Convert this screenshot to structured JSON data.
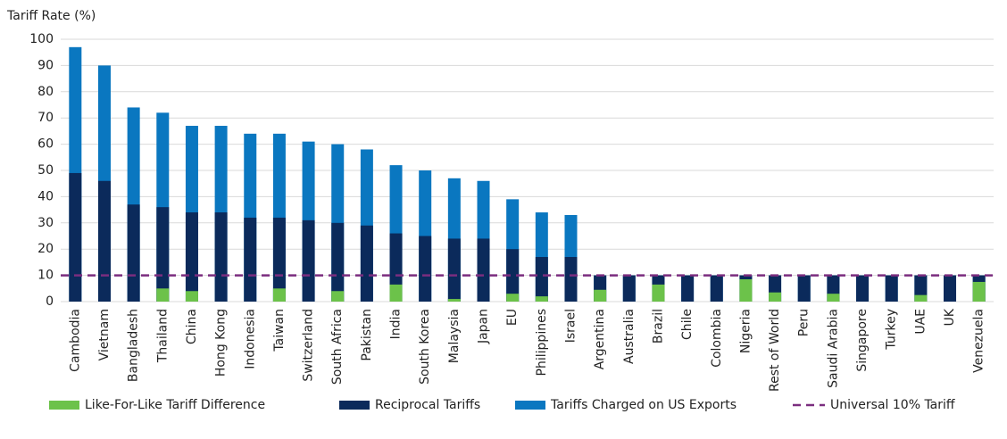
{
  "chart_data": {
    "type": "bar",
    "y_label": "Tariff Rate (%)",
    "categories": [
      "Cambodia",
      "Vietnam",
      "Bangladesh",
      "Thailand",
      "China",
      "Hong Kong",
      "Indonesia",
      "Taiwan",
      "Switzerland",
      "South Africa",
      "Pakistan",
      "India",
      "South Korea",
      "Malaysia",
      "Japan",
      "EU",
      "Philippines",
      "Israel",
      "Argentina",
      "Australia",
      "Brazil",
      "Chile",
      "Colombia",
      "Nigeria",
      "Rest of World",
      "Peru",
      "Saudi Arabia",
      "Singapore",
      "Turkey",
      "UAE",
      "UK",
      "Venezuela"
    ],
    "series": [
      {
        "name": "Like-For-Like Tariff Difference",
        "color": "#6cc24a",
        "values": [
          null,
          null,
          null,
          5,
          4,
          null,
          null,
          5,
          null,
          4,
          null,
          6.5,
          null,
          1,
          null,
          3,
          2,
          null,
          4.5,
          null,
          6.5,
          null,
          null,
          8.5,
          3.5,
          null,
          3,
          null,
          null,
          2.5,
          null,
          7.5
        ]
      },
      {
        "name": "Reciprocal Tariffs",
        "color": "#0b2a5b",
        "values": [
          49,
          46,
          37,
          36,
          34,
          34,
          32,
          32,
          31,
          30,
          29,
          26,
          25,
          24,
          24,
          20,
          17,
          17,
          10,
          10,
          10,
          10,
          10,
          10,
          10,
          10,
          10,
          10,
          10,
          10,
          10,
          10
        ]
      },
      {
        "name": "Tariffs Charged on US Exports",
        "color": "#0a77c0",
        "values": [
          97,
          90,
          74,
          72,
          67,
          67,
          64,
          64,
          61,
          60,
          58,
          52,
          50,
          47,
          46,
          39,
          34,
          33,
          10,
          10,
          10,
          10,
          10,
          10,
          10,
          10,
          10,
          10,
          10,
          10,
          10,
          10
        ]
      }
    ],
    "reference_line": {
      "name": "Universal 10% Tariff",
      "value": 10,
      "color": "#7b2d7f"
    },
    "ylim": [
      0,
      100
    ],
    "yticks": [
      0,
      10,
      20,
      30,
      40,
      50,
      60,
      70,
      80,
      90,
      100
    ],
    "grid": true
  }
}
